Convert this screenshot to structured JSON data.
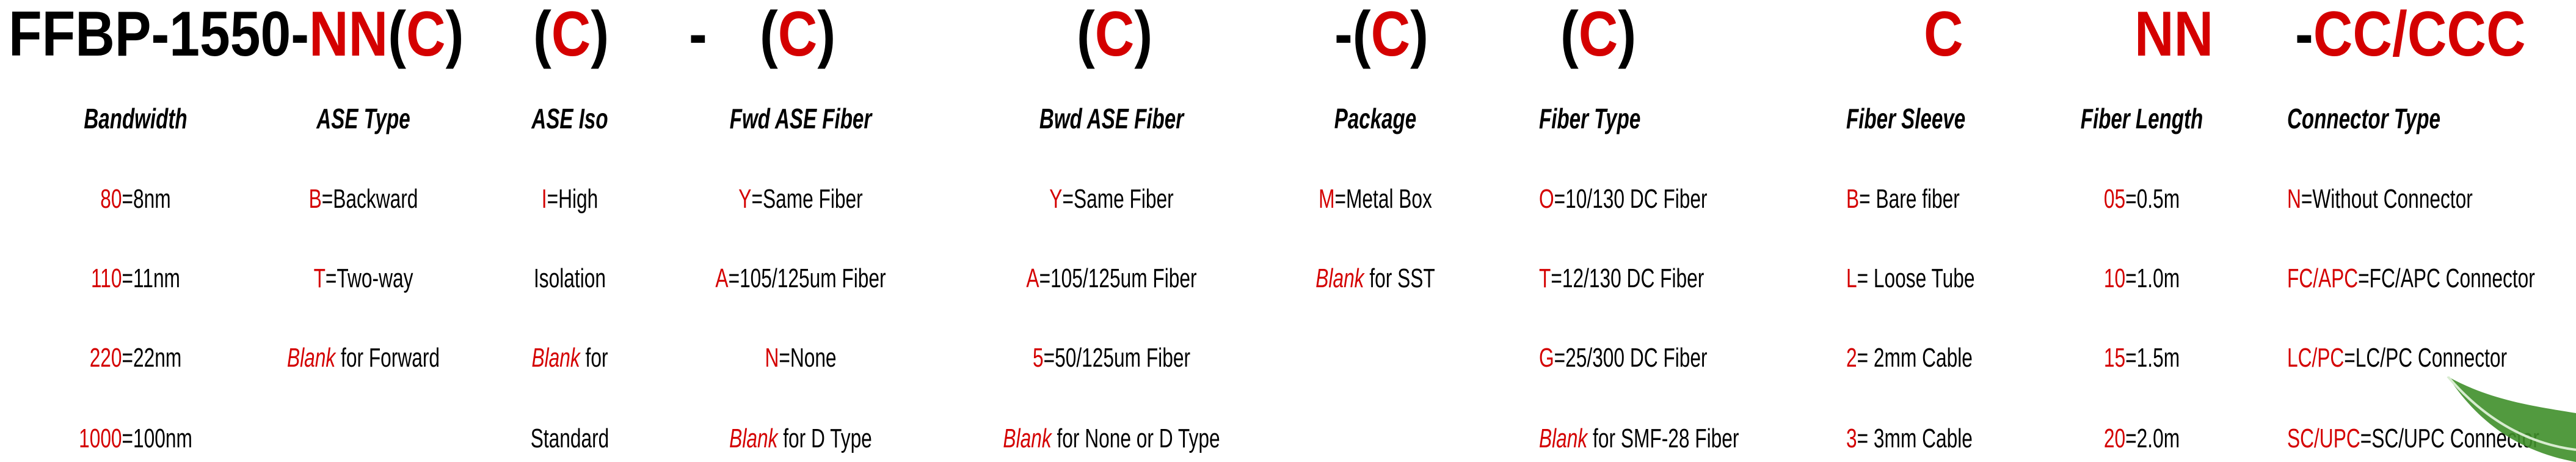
{
  "title": {
    "segments": [
      {
        "text": "FFBP-1550-",
        "color": "#000000"
      },
      {
        "text": "NN",
        "color": "#d40000"
      },
      {
        "text": "(",
        "color": "#000000"
      },
      {
        "text": "C",
        "color": "#d40000"
      },
      {
        "text": ")",
        "color": "#000000"
      },
      {
        "text": "(",
        "color": "#000000"
      },
      {
        "text": "C",
        "color": "#d40000"
      },
      {
        "text": ")",
        "color": "#000000"
      },
      {
        "text": "-",
        "color": "#000000"
      },
      {
        "text": "(",
        "color": "#000000"
      },
      {
        "text": "C",
        "color": "#d40000"
      },
      {
        "text": ")",
        "color": "#000000"
      },
      {
        "text": "(",
        "color": "#000000"
      },
      {
        "text": "C",
        "color": "#d40000"
      },
      {
        "text": ")",
        "color": "#000000"
      },
      {
        "text": "-(",
        "color": "#000000"
      },
      {
        "text": "C",
        "color": "#d40000"
      },
      {
        "text": ")",
        "color": "#000000"
      },
      {
        "text": "(",
        "color": "#000000"
      },
      {
        "text": "C",
        "color": "#d40000"
      },
      {
        "text": ")",
        "color": "#000000"
      },
      {
        "text": "C",
        "color": "#d40000"
      },
      {
        "text": "NN",
        "color": "#d40000"
      },
      {
        "text": "-",
        "color": "#000000"
      },
      {
        "text": "CC/CCC",
        "color": "#d40000"
      }
    ]
  },
  "colors": {
    "accent": "#d40000",
    "text": "#000000",
    "leaf": "#3f8f2a"
  },
  "columns": [
    {
      "header": "Bandwidth",
      "items": [
        {
          "code": "80",
          "text": "=8nm"
        },
        {
          "code": "110",
          "text": "=11nm"
        },
        {
          "code": "220",
          "text": "=22nm"
        },
        {
          "code": "1000",
          "text": "=100nm"
        }
      ]
    },
    {
      "header": "ASE Type",
      "items": [
        {
          "code": "B",
          "text": "=Backward"
        },
        {
          "code": "T",
          "text": "=Two-way"
        },
        {
          "blank": "Blank",
          "text": " for Forward"
        }
      ]
    },
    {
      "header": "ASE Iso",
      "items": [
        {
          "code": "I",
          "text": "=High"
        },
        {
          "text": "Isolation"
        },
        {
          "blank": "Blank",
          "text": " for"
        },
        {
          "text": "Standard"
        }
      ]
    },
    {
      "header": "Fwd ASE Fiber",
      "items": [
        {
          "code": "Y",
          "text": "=Same Fiber"
        },
        {
          "code": "A",
          "text": "=105/125um Fiber"
        },
        {
          "code": "N",
          "text": "=None"
        },
        {
          "blank": "Blank",
          "text": " for D Type"
        }
      ]
    },
    {
      "header": "Bwd ASE Fiber",
      "items": [
        {
          "code": "Y",
          "text": "=Same Fiber"
        },
        {
          "code": "A",
          "text": "=105/125um Fiber"
        },
        {
          "code": "5",
          "text": "=50/125um Fiber"
        },
        {
          "blank": "Blank",
          "text": " for None or D Type"
        }
      ]
    },
    {
      "header": "Package",
      "items": [
        {
          "code": "M",
          "text": "=Metal Box"
        },
        {
          "blank": "Blank",
          "text": " for SST"
        }
      ]
    },
    {
      "header": "Fiber Type",
      "items": [
        {
          "code": "O",
          "text": "=10/130 DC Fiber"
        },
        {
          "code": "T",
          "text": "=12/130 DC Fiber"
        },
        {
          "code": "G",
          "text": "=25/300 DC Fiber"
        },
        {
          "blank": "Blank",
          "text": " for SMF-28 Fiber"
        }
      ]
    },
    {
      "header": "Fiber Sleeve",
      "items": [
        {
          "code": "B",
          "text": "= Bare fiber"
        },
        {
          "code": "L",
          "text": "= Loose Tube"
        },
        {
          "code": "2",
          "text": "= 2mm Cable"
        },
        {
          "code": "3",
          "text": "= 3mm Cable"
        }
      ]
    },
    {
      "header": "Fiber Length",
      "items": [
        {
          "code": "05",
          "text": "=0.5m"
        },
        {
          "code": "10",
          "text": "=1.0m"
        },
        {
          "code": "15",
          "text": "=1.5m"
        },
        {
          "code": "20",
          "text": "=2.0m"
        }
      ]
    },
    {
      "header": "Connector Type",
      "items": [
        {
          "code": "N",
          "text": "=Without Connector"
        },
        {
          "code": "FC/APC",
          "text": "=FC/APC Connector"
        },
        {
          "code": "LC/PC",
          "text": "=LC/PC Connector"
        },
        {
          "code": "SC/UPC",
          "text": "=SC/UPC Connector"
        }
      ]
    }
  ]
}
